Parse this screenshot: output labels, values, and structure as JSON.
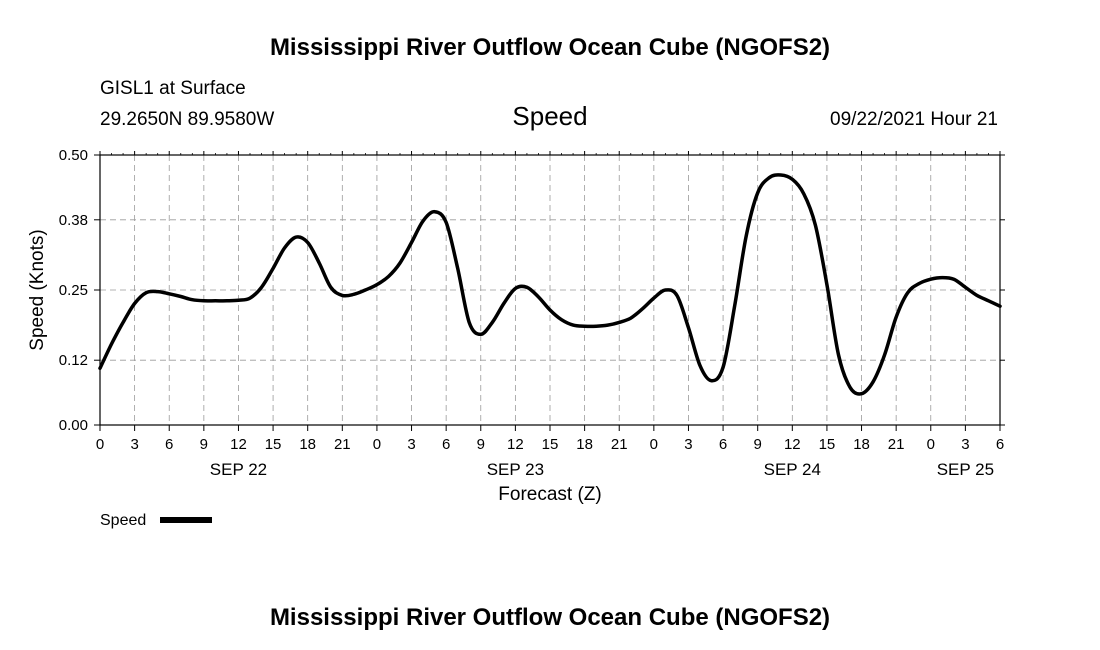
{
  "title_top": "Mississippi River Outflow Ocean Cube (NGOFS2)",
  "title_bottom": "Mississippi River Outflow Ocean Cube (NGOFS2)",
  "station": {
    "name": "GISL1 at Surface",
    "coords": "29.2650N  89.9580W"
  },
  "plot_title": "Speed",
  "timestamp": "09/22/2021 Hour 21",
  "legend": {
    "label": "Speed"
  },
  "colors": {
    "line": "#000000",
    "grid": "#9a9a9a",
    "axis": "#000000"
  },
  "chart_data": {
    "type": "line",
    "title": "Speed",
    "xlabel": "Forecast (Z)",
    "ylabel": "Speed (Knots)",
    "x_unit": "hours from SEP 22 00Z",
    "xlim": [
      0,
      78
    ],
    "ylim": [
      0,
      0.5
    ],
    "grid": true,
    "legend_position": "bottom-left",
    "y_ticks": [
      0.0,
      0.12,
      0.25,
      0.38,
      0.5
    ],
    "y_tick_labels": [
      "0.00",
      "0.12",
      "0.25",
      "0.38",
      "0.50"
    ],
    "x_ticks": [
      0,
      3,
      6,
      9,
      12,
      15,
      18,
      21,
      24,
      27,
      30,
      33,
      36,
      39,
      42,
      45,
      48,
      51,
      54,
      57,
      60,
      63,
      66,
      69,
      72,
      75,
      78
    ],
    "x_tick_labels": [
      "0",
      "3",
      "6",
      "9",
      "12",
      "15",
      "18",
      "21",
      "0",
      "3",
      "6",
      "9",
      "12",
      "15",
      "18",
      "21",
      "0",
      "3",
      "6",
      "9",
      "12",
      "15",
      "18",
      "21",
      "0",
      "3",
      "6"
    ],
    "date_labels": [
      {
        "x": 12,
        "label": "SEP 22"
      },
      {
        "x": 36,
        "label": "SEP 23"
      },
      {
        "x": 60,
        "label": "SEP 24"
      },
      {
        "x": 75,
        "label": "SEP 25"
      }
    ],
    "series": [
      {
        "name": "Speed",
        "x": [
          0,
          1,
          2,
          3,
          4,
          5,
          6,
          7,
          8,
          9,
          10,
          11,
          12,
          13,
          14,
          15,
          16,
          17,
          18,
          19,
          20,
          21,
          22,
          23,
          24,
          25,
          26,
          27,
          28,
          29,
          30,
          31,
          32,
          33,
          34,
          35,
          36,
          37,
          38,
          39,
          40,
          41,
          42,
          43,
          44,
          45,
          46,
          47,
          48,
          49,
          50,
          51,
          52,
          53,
          54,
          55,
          56,
          57,
          58,
          59,
          60,
          61,
          62,
          63,
          64,
          65,
          66,
          67,
          68,
          69,
          70,
          71,
          72,
          73,
          74,
          75,
          76,
          77,
          78
        ],
        "y": [
          0.105,
          0.15,
          0.19,
          0.225,
          0.245,
          0.247,
          0.243,
          0.238,
          0.232,
          0.23,
          0.23,
          0.23,
          0.231,
          0.235,
          0.255,
          0.29,
          0.328,
          0.348,
          0.338,
          0.3,
          0.255,
          0.24,
          0.242,
          0.25,
          0.26,
          0.275,
          0.3,
          0.338,
          0.378,
          0.395,
          0.375,
          0.29,
          0.19,
          0.168,
          0.19,
          0.225,
          0.253,
          0.255,
          0.237,
          0.213,
          0.195,
          0.185,
          0.183,
          0.183,
          0.185,
          0.19,
          0.198,
          0.215,
          0.235,
          0.25,
          0.24,
          0.18,
          0.11,
          0.082,
          0.107,
          0.22,
          0.35,
          0.43,
          0.458,
          0.463,
          0.455,
          0.428,
          0.37,
          0.26,
          0.13,
          0.07,
          0.058,
          0.08,
          0.13,
          0.2,
          0.245,
          0.262,
          0.27,
          0.273,
          0.27,
          0.255,
          0.24,
          0.23,
          0.22
        ]
      }
    ]
  }
}
